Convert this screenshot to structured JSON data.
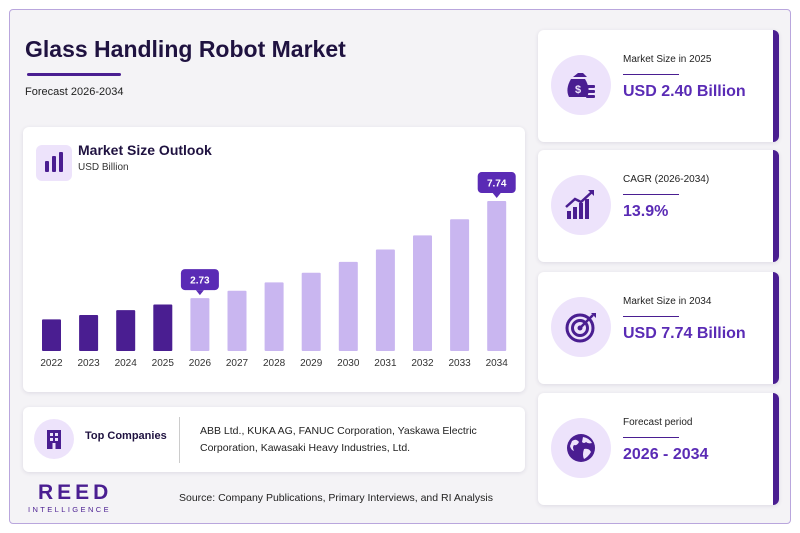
{
  "header": {
    "title": "Glass Handling Robot Market",
    "subtitle": "Forecast 2026-2034"
  },
  "chart_data": {
    "type": "bar",
    "title": "Market Size Outlook",
    "ylabel": "USD Billion",
    "categories": [
      "2022",
      "2023",
      "2024",
      "2025",
      "2026",
      "2027",
      "2028",
      "2029",
      "2030",
      "2031",
      "2032",
      "2033",
      "2034"
    ],
    "values": [
      1.63,
      1.86,
      2.11,
      2.4,
      2.73,
      3.11,
      3.54,
      4.04,
      4.6,
      5.24,
      5.97,
      6.8,
      7.74
    ],
    "ylim": [
      0,
      8
    ],
    "grid": false,
    "historical_color": "#4a1e91",
    "forecast_color": "#c9b6f0",
    "callouts": [
      {
        "category": "2026",
        "label": "2.73"
      },
      {
        "category": "2034",
        "label": "7.74"
      }
    ]
  },
  "companies": {
    "label": "Top Companies",
    "text": "ABB Ltd., KUKA AG, FANUC Corporation, Yaskawa Electric Corporation, Kawasaki Heavy Industries, Ltd."
  },
  "logo": {
    "main": "REED",
    "sub": "INTELLIGENCE"
  },
  "source": "Source: Company Publications, Primary Interviews, and RI Analysis",
  "stats": [
    {
      "label": "Market Size in 2025",
      "value": "USD 2.40 Billion",
      "icon": "money-bag-icon"
    },
    {
      "label": "CAGR (2026-2034)",
      "value": "13.9%",
      "icon": "growth-chart-icon"
    },
    {
      "label": "Market Size in 2034",
      "value": "USD 7.74 Billion",
      "icon": "target-icon"
    },
    {
      "label": "Forecast period",
      "value": "2026 - 2034",
      "icon": "globe-icon"
    }
  ],
  "colors": {
    "brand": "#4a1e91",
    "accent": "#5a2bb5",
    "icon_bg": "#ede3fb"
  }
}
